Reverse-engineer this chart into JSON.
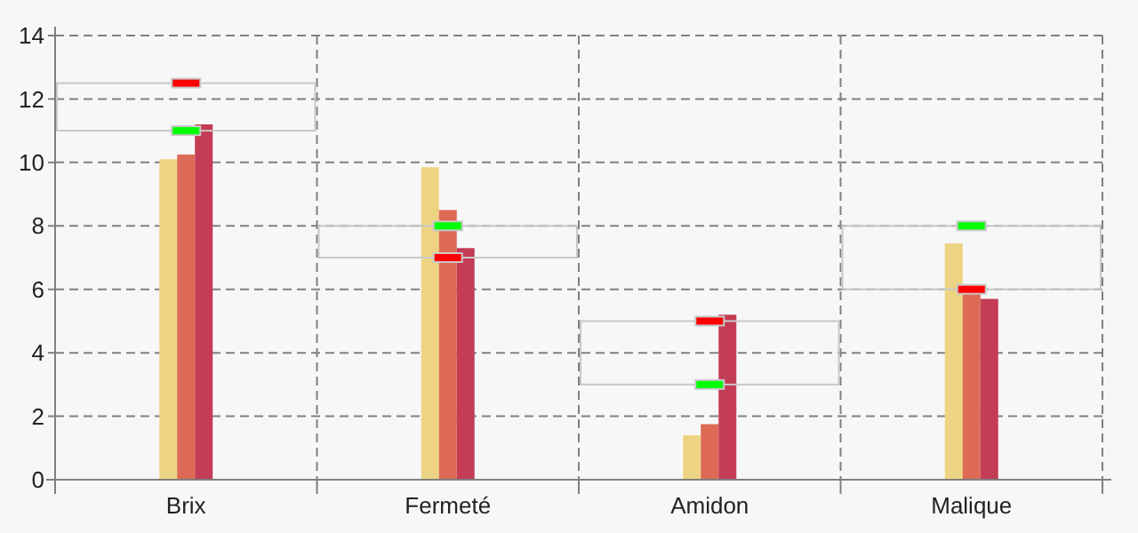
{
  "chart_data": {
    "type": "bar",
    "categories": [
      "Brix",
      "Fermeté",
      "Amidon",
      "Malique"
    ],
    "series": [
      {
        "color": "#edd482",
        "values": [
          10.1,
          9.85,
          1.4,
          7.45
        ]
      },
      {
        "color": "#dd6a55",
        "values": [
          10.25,
          8.5,
          1.75,
          5.95
        ]
      },
      {
        "color": "#c43c55",
        "values": [
          11.2,
          7.3,
          5.2,
          5.7
        ]
      },
      {
        "type": "bar",
        "color": "#c8c8c8",
        "base": [
          11,
          7,
          3,
          6
        ],
        "values": [
          1.5,
          1,
          2,
          2
        ]
      },
      {
        "type": "scatter",
        "marker": "square",
        "color": "#00ff00",
        "x": [
          "Brix",
          "Fermeté",
          "Amidon",
          "Malique"
        ],
        "values": [
          11,
          8,
          3,
          8
        ]
      },
      {
        "type": "scatter",
        "marker": "square",
        "color": "#ff0000",
        "x": [
          "Brix",
          "Fermeté",
          "Amidon",
          "Malique"
        ],
        "values": [
          12.5,
          7,
          5,
          6
        ]
      }
    ],
    "ylim": [
      0,
      14
    ],
    "yticks": [
      0,
      2,
      4,
      6,
      8,
      10,
      12,
      14
    ],
    "grid": true
  }
}
